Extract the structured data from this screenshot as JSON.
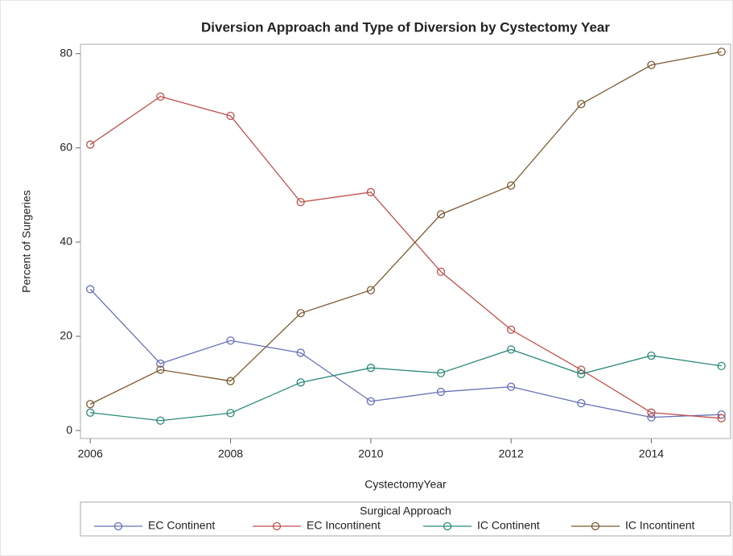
{
  "chart_data": {
    "type": "line",
    "title": "Diversion Approach and Type of Diversion by Cystectomy Year",
    "x_label": "CystectomyYear",
    "y_label": "Percent of Surgeries",
    "legend_title": "Surgical Approach",
    "legend_position": "bottom",
    "x": [
      2006,
      2007,
      2008,
      2009,
      2010,
      2011,
      2012,
      2013,
      2014,
      2015
    ],
    "xlim": [
      2005.86,
      2015.13
    ],
    "xticks": [
      2006,
      2008,
      2010,
      2012,
      2014
    ],
    "ylim": [
      -1.7,
      82
    ],
    "yticks": [
      0,
      20,
      40,
      60,
      80
    ],
    "grid": false,
    "series": [
      {
        "name": "EC Continent",
        "color": "#6670b8",
        "values": [
          30,
          14.2,
          19.1,
          16.5,
          6.2,
          8.2,
          9.3,
          5.8,
          2.8,
          3.4
        ]
      },
      {
        "name": "EC Incontinent",
        "color": "#c0504d",
        "values": [
          60.7,
          70.9,
          66.8,
          48.5,
          50.6,
          33.7,
          21.4,
          12.9,
          3.8,
          2.6
        ]
      },
      {
        "name": "IC Continent",
        "color": "#2a8a78",
        "values": [
          3.8,
          2.1,
          3.7,
          10.2,
          13.3,
          12.2,
          17.2,
          12.0,
          15.9,
          13.7
        ]
      },
      {
        "name": "IC Incontinent",
        "color": "#7a5a30",
        "values": [
          5.6,
          12.9,
          10.5,
          24.9,
          29.8,
          45.9,
          52.0,
          69.3,
          77.6,
          80.4
        ]
      }
    ]
  }
}
